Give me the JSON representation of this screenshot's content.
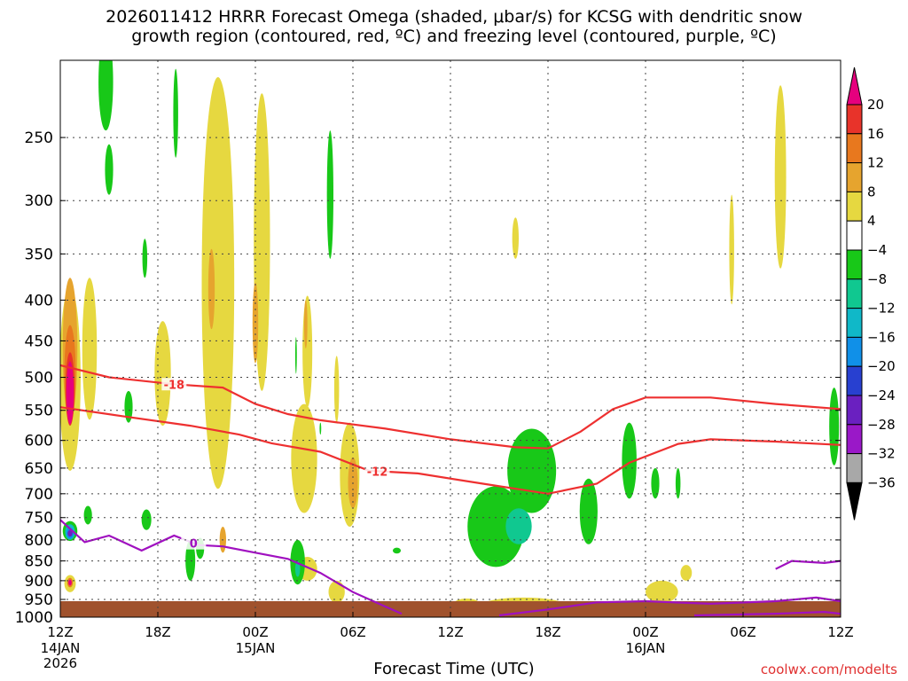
{
  "title_line1": "2026011412 HRRR Forecast Omega (shaded, μbar/s) for KCSG with dendritic snow",
  "title_line2": "growth region (contoured, red, ºC) and freezing level (contoured, purple, ºC)",
  "credit": "coolwx.com/modelts",
  "chart_data": {
    "type": "heatmap",
    "xlabel": "Forecast Time (UTC)",
    "ylabel": "",
    "x_ticks": [
      {
        "label": "12Z",
        "hour": 0,
        "sub": [
          "14JAN",
          "2026"
        ]
      },
      {
        "label": "18Z",
        "hour": 6,
        "sub": []
      },
      {
        "label": "00Z",
        "hour": 12,
        "sub": [
          "15JAN"
        ]
      },
      {
        "label": "06Z",
        "hour": 18,
        "sub": []
      },
      {
        "label": "12Z",
        "hour": 24,
        "sub": []
      },
      {
        "label": "18Z",
        "hour": 30,
        "sub": []
      },
      {
        "label": "00Z",
        "hour": 36,
        "sub": [
          "16JAN"
        ]
      },
      {
        "label": "06Z",
        "hour": 42,
        "sub": []
      },
      {
        "label": "12Z",
        "hour": 48,
        "sub": []
      }
    ],
    "xlim": [
      0,
      48
    ],
    "y_pressure_ticks": [
      250,
      300,
      350,
      400,
      450,
      500,
      550,
      600,
      650,
      700,
      750,
      800,
      850,
      900,
      950,
      1000
    ],
    "ylim_hPa": [
      200,
      1000
    ],
    "grid": true,
    "colorbar": {
      "labels": [
        "20",
        "16",
        "12",
        "8",
        "4",
        "−4",
        "−8",
        "−12",
        "−16",
        "−20",
        "−24",
        "−28",
        "−32",
        "−36"
      ],
      "bins": [
        {
          "range": ">20",
          "color": "#e6007e"
        },
        {
          "range": "16 to 20",
          "color": "#e8332a"
        },
        {
          "range": "12 to 16",
          "color": "#e8781e"
        },
        {
          "range": "8 to 12",
          "color": "#e6a42e"
        },
        {
          "range": "4 to 8",
          "color": "#e6d840"
        },
        {
          "range": "-4 to 4",
          "color": "#ffffff"
        },
        {
          "range": "-8 to -4",
          "color": "#18c818"
        },
        {
          "range": "-12 to -8",
          "color": "#10c890"
        },
        {
          "range": "-16 to -12",
          "color": "#10b8c8"
        },
        {
          "range": "-20 to -16",
          "color": "#1090e8"
        },
        {
          "range": "-24 to -20",
          "color": "#2840d0"
        },
        {
          "range": "-28 to -24",
          "color": "#6a20c0"
        },
        {
          "range": "-32 to -28",
          "color": "#9a18c8"
        },
        {
          "range": "-36 to -32",
          "color": "#a8a8a8"
        },
        {
          "range": "<-36",
          "color": "#000000"
        }
      ]
    },
    "omega_regions": [
      {
        "bin": "4 to 8",
        "hour": 0.6,
        "p": 520,
        "dh": 1.3,
        "dp": 270
      },
      {
        "bin": "8 to 12",
        "hour": 0.6,
        "p": 470,
        "dh": 0.9,
        "dp": 190
      },
      {
        "bin": "12 to 16",
        "hour": 0.6,
        "p": 500,
        "dh": 0.7,
        "dp": 140
      },
      {
        "bin": "16 to 20",
        "hour": 0.6,
        "p": 520,
        "dh": 0.55,
        "dp": 110
      },
      {
        "bin": ">20",
        "hour": 0.6,
        "p": 525,
        "dh": 0.45,
        "dp": 95
      },
      {
        "bin": "4 to 8",
        "hour": 0.6,
        "p": 908,
        "dh": 0.7,
        "dp": 45
      },
      {
        "bin": "12 to 16",
        "hour": 0.6,
        "p": 905,
        "dh": 0.35,
        "dp": 25
      },
      {
        "bin": ">20",
        "hour": 0.6,
        "p": 905,
        "dh": 0.2,
        "dp": 15
      },
      {
        "bin": "-8 to -4",
        "hour": 0.6,
        "p": 780,
        "dh": 0.9,
        "dp": 45
      },
      {
        "bin": "-16 to -12",
        "hour": 0.6,
        "p": 782,
        "dh": 0.6,
        "dp": 35
      },
      {
        "bin": "-20 to -16",
        "hour": 0.6,
        "p": 785,
        "dh": 0.45,
        "dp": 25
      },
      {
        "bin": "-28 to -24",
        "hour": 0.6,
        "p": 785,
        "dh": 0.3,
        "dp": 15
      },
      {
        "bin": "-8 to -4",
        "hour": 2.8,
        "p": 215,
        "dh": 0.9,
        "dp": 60
      },
      {
        "bin": "-8 to -4",
        "hour": 3.0,
        "p": 275,
        "dh": 0.5,
        "dp": 40
      },
      {
        "bin": "4 to 8",
        "hour": 1.8,
        "p": 470,
        "dh": 0.9,
        "dp": 190
      },
      {
        "bin": "-8 to -4",
        "hour": 1.7,
        "p": 745,
        "dh": 0.5,
        "dp": 40
      },
      {
        "bin": "-8 to -4",
        "hour": 4.2,
        "p": 545,
        "dh": 0.5,
        "dp": 50
      },
      {
        "bin": "-8 to -4",
        "hour": 5.2,
        "p": 355,
        "dh": 0.3,
        "dp": 40
      },
      {
        "bin": "-8 to -4",
        "hour": 5.3,
        "p": 755,
        "dh": 0.6,
        "dp": 45
      },
      {
        "bin": "4 to 8",
        "hour": 6.3,
        "p": 500,
        "dh": 1.0,
        "dp": 150
      },
      {
        "bin": "-8 to -4",
        "hour": 7.1,
        "p": 235,
        "dh": 0.3,
        "dp": 60
      },
      {
        "bin": "4 to 8",
        "hour": 9.7,
        "p": 450,
        "dh": 2.0,
        "dp": 480
      },
      {
        "bin": "8 to 12",
        "hour": 9.3,
        "p": 390,
        "dh": 0.4,
        "dp": 90
      },
      {
        "bin": "8 to 12",
        "hour": 10.0,
        "p": 800,
        "dh": 0.4,
        "dp": 60
      },
      {
        "bin": "-8 to -4",
        "hour": 8.0,
        "p": 850,
        "dh": 0.6,
        "dp": 100
      },
      {
        "bin": "-8 to -4",
        "hour": 8.6,
        "p": 820,
        "dh": 0.5,
        "dp": 50
      },
      {
        "bin": "4 to 8",
        "hour": 12.4,
        "p": 370,
        "dh": 1.0,
        "dp": 300
      },
      {
        "bin": "8 to 12",
        "hour": 12.0,
        "p": 430,
        "dh": 0.35,
        "dp": 100
      },
      {
        "bin": "-8 to -4",
        "hour": 14.5,
        "p": 470,
        "dh": 0.1,
        "dp": 50
      },
      {
        "bin": "4 to 8",
        "hour": 15.0,
        "p": 640,
        "dh": 1.6,
        "dp": 200
      },
      {
        "bin": "4 to 8",
        "hour": 15.2,
        "p": 870,
        "dh": 1.2,
        "dp": 60
      },
      {
        "bin": "-8 to -4",
        "hour": 14.6,
        "p": 855,
        "dh": 0.9,
        "dp": 110
      },
      {
        "bin": "-12 to -8",
        "hour": 14.6,
        "p": 870,
        "dh": 0.3,
        "dp": 40
      },
      {
        "bin": "4 to 8",
        "hour": 15.2,
        "p": 470,
        "dh": 0.6,
        "dp": 150
      },
      {
        "bin": "8 to 12",
        "hour": 15.1,
        "p": 430,
        "dh": 0.2,
        "dp": 60
      },
      {
        "bin": "-8 to -4",
        "hour": 16.0,
        "p": 580,
        "dh": 0.1,
        "dp": 20
      },
      {
        "bin": "-8 to -4",
        "hour": 16.6,
        "p": 300,
        "dh": 0.4,
        "dp": 110
      },
      {
        "bin": "4 to 8",
        "hour": 17.8,
        "p": 670,
        "dh": 1.2,
        "dp": 200
      },
      {
        "bin": "8 to 12",
        "hour": 18.0,
        "p": 680,
        "dh": 0.6,
        "dp": 100
      },
      {
        "bin": "4 to 8",
        "hour": 17.0,
        "p": 520,
        "dh": 0.3,
        "dp": 100
      },
      {
        "bin": "4 to 8",
        "hour": 17.0,
        "p": 930,
        "dh": 1.0,
        "dp": 60
      },
      {
        "bin": "4 to 8",
        "hour": 19.5,
        "p": 970,
        "dh": 1.6,
        "dp": 30
      },
      {
        "bin": "-8 to -4",
        "hour": 20.7,
        "p": 825,
        "dh": 0.5,
        "dp": 14
      },
      {
        "bin": "4 to 8",
        "hour": 25.0,
        "p": 960,
        "dh": 1.5,
        "dp": 25
      },
      {
        "bin": "-8 to -4",
        "hour": 26.8,
        "p": 775,
        "dh": 3.5,
        "dp": 180
      },
      {
        "bin": "-8 to -4",
        "hour": 29.0,
        "p": 660,
        "dh": 3.0,
        "dp": 160
      },
      {
        "bin": "-12 to -8",
        "hour": 28.2,
        "p": 770,
        "dh": 1.6,
        "dp": 80
      },
      {
        "bin": "-12 to -8",
        "hour": 32.5,
        "p": 770,
        "dh": 0.8,
        "dp": 60
      },
      {
        "bin": "-8 to -4",
        "hour": 32.5,
        "p": 740,
        "dh": 1.1,
        "dp": 140
      },
      {
        "bin": "4 to 8",
        "hour": 28.5,
        "p": 965,
        "dh": 5.0,
        "dp": 40
      },
      {
        "bin": "4 to 8",
        "hour": 37.0,
        "p": 930,
        "dh": 2.0,
        "dp": 60
      },
      {
        "bin": "4 to 8",
        "hour": 38.5,
        "p": 880,
        "dh": 0.7,
        "dp": 40
      },
      {
        "bin": "-8 to -4",
        "hour": 35.0,
        "p": 640,
        "dh": 0.9,
        "dp": 140
      },
      {
        "bin": "-8 to -4",
        "hour": 36.6,
        "p": 680,
        "dh": 0.5,
        "dp": 60
      },
      {
        "bin": "-8 to -4",
        "hour": 38.0,
        "p": 680,
        "dh": 0.3,
        "dp": 60
      },
      {
        "bin": "4 to 8",
        "hour": 41.3,
        "p": 350,
        "dh": 0.3,
        "dp": 110
      },
      {
        "bin": "4 to 8",
        "hour": 44.3,
        "p": 290,
        "dh": 0.7,
        "dp": 150
      },
      {
        "bin": "4 to 8",
        "hour": 28.0,
        "p": 335,
        "dh": 0.4,
        "dp": 40
      },
      {
        "bin": "-8 to -4",
        "hour": 47.6,
        "p": 580,
        "dh": 0.6,
        "dp": 130
      }
    ],
    "contours": [
      {
        "label": "-18",
        "color": "#ee3030",
        "label_at": 7.0,
        "points": [
          [
            0,
            483
          ],
          [
            3,
            500
          ],
          [
            7,
            510
          ],
          [
            10,
            515
          ],
          [
            12,
            540
          ],
          [
            14,
            556
          ],
          [
            16,
            566
          ],
          [
            20,
            580
          ],
          [
            24,
            598
          ],
          [
            28,
            612
          ],
          [
            30,
            614
          ],
          [
            32,
            585
          ],
          [
            34,
            548
          ],
          [
            36,
            530
          ],
          [
            40,
            530
          ],
          [
            44,
            540
          ],
          [
            48,
            548
          ]
        ]
      },
      {
        "label": "-12",
        "color": "#ee3030",
        "label_at": 19.5,
        "points": [
          [
            0,
            545
          ],
          [
            4,
            560
          ],
          [
            8,
            575
          ],
          [
            11,
            590
          ],
          [
            13,
            605
          ],
          [
            16,
            620
          ],
          [
            19,
            655
          ],
          [
            22,
            660
          ],
          [
            26,
            680
          ],
          [
            30,
            700
          ],
          [
            33,
            680
          ],
          [
            35,
            640
          ],
          [
            38,
            606
          ],
          [
            40,
            598
          ],
          [
            44,
            602
          ],
          [
            48,
            608
          ]
        ]
      },
      {
        "label": "0",
        "color": "#a010c0",
        "label_at": 8.2,
        "points": [
          [
            0,
            755
          ],
          [
            1.5,
            805
          ],
          [
            3,
            790
          ],
          [
            5,
            825
          ],
          [
            7,
            790
          ],
          [
            8.5,
            812
          ],
          [
            10,
            815
          ],
          [
            12,
            830
          ],
          [
            14,
            845
          ],
          [
            16,
            880
          ],
          [
            18,
            930
          ],
          [
            20,
            970
          ],
          [
            21,
            990
          ]
        ],
        "extra": [
          [
            27,
            995
          ],
          [
            30,
            978
          ],
          [
            33,
            958
          ],
          [
            36,
            955
          ],
          [
            40,
            962
          ],
          [
            44,
            955
          ],
          [
            46.5,
            945
          ],
          [
            48,
            955
          ]
        ],
        "extra2": [
          [
            39,
            995
          ],
          [
            44,
            990
          ],
          [
            47,
            985
          ],
          [
            48,
            990
          ]
        ],
        "loop": [
          [
            44,
            870
          ],
          [
            45,
            850
          ],
          [
            47,
            855
          ],
          [
            48,
            850
          ]
        ]
      }
    ]
  }
}
